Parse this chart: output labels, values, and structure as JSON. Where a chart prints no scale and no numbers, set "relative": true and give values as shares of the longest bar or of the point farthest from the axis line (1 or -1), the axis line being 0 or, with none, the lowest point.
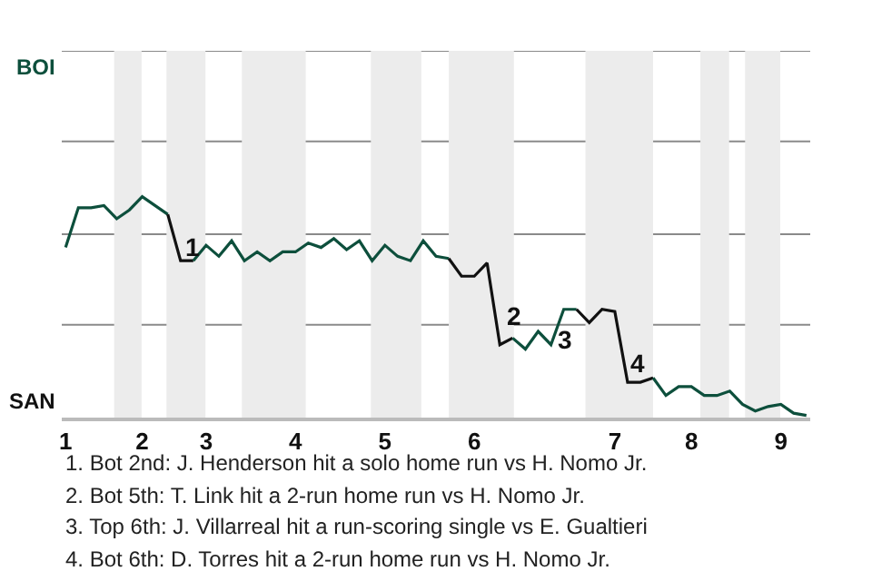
{
  "chart_data": {
    "type": "line",
    "relative": true,
    "marker": "none",
    "line_style": "solid",
    "ref_lines": [
      {
        "axis": "y",
        "value": 0.42,
        "color": "#8a8a8a"
      },
      {
        "axis": "y",
        "value": 0.83,
        "color": "#8a8a8a"
      },
      {
        "axis": "y",
        "value": 1.25,
        "color": "#8a8a8a"
      },
      {
        "axis": "y",
        "value": 1.66,
        "color": "#8a8a8a"
      }
    ],
    "categories": [
      "1",
      null,
      null,
      null,
      null,
      null,
      "2",
      null,
      null,
      null,
      null,
      "3",
      null,
      null,
      null,
      null,
      null,
      null,
      "4",
      null,
      null,
      null,
      null,
      null,
      null,
      "5",
      null,
      null,
      null,
      null,
      null,
      null,
      "6",
      null,
      null,
      null,
      null,
      null,
      null,
      null,
      null,
      null,
      null,
      "7",
      null,
      null,
      null,
      null,
      null,
      "8",
      null,
      null,
      null,
      null,
      null,
      null,
      "9",
      null,
      null
    ],
    "series": [
      {
        "color": "#0d4f3c",
        "values": [
          0.77,
          0.95,
          0.95,
          0.96,
          0.9,
          0.94,
          1.0,
          0.96,
          0.92,
          null,
          null,
          null,
          null,
          null,
          null,
          null,
          null,
          null,
          null,
          null,
          null,
          null,
          null,
          null,
          null,
          null,
          null,
          null,
          null,
          null,
          null,
          null,
          null,
          null,
          null,
          null,
          null,
          null,
          null,
          null,
          null,
          null,
          null,
          null,
          null,
          null,
          null,
          null,
          null,
          null,
          null,
          null,
          null,
          null,
          null,
          null,
          null,
          null,
          null
        ]
      },
      {
        "color": "#111111",
        "values": [
          null,
          null,
          null,
          null,
          null,
          null,
          null,
          null,
          0.92,
          0.71,
          0.71,
          null,
          null,
          null,
          null,
          null,
          null,
          null,
          null,
          null,
          null,
          null,
          null,
          null,
          null,
          null,
          null,
          null,
          null,
          null,
          null,
          null,
          null,
          null,
          null,
          null,
          null,
          null,
          null,
          null,
          null,
          null,
          null,
          null,
          null,
          null,
          null,
          null,
          null,
          null,
          null,
          null,
          null,
          null,
          null,
          null,
          null,
          null,
          null
        ]
      },
      {
        "color": "#0d4f3c",
        "values": [
          null,
          null,
          null,
          null,
          null,
          null,
          null,
          null,
          null,
          null,
          0.71,
          0.78,
          0.73,
          0.8,
          0.71,
          0.75,
          0.71,
          0.75,
          0.75,
          0.79,
          0.77,
          0.81,
          0.76,
          0.8,
          0.71,
          0.78,
          0.73,
          0.71,
          0.8,
          0.73,
          0.72,
          null,
          null,
          null,
          null,
          null,
          null,
          null,
          null,
          null,
          null,
          null,
          null,
          null,
          null,
          null,
          null,
          null,
          null,
          null,
          null,
          null,
          null,
          null,
          null,
          null,
          null,
          null,
          null
        ]
      },
      {
        "color": "#111111",
        "values": [
          null,
          null,
          null,
          null,
          null,
          null,
          null,
          null,
          null,
          null,
          null,
          null,
          null,
          null,
          null,
          null,
          null,
          null,
          null,
          null,
          null,
          null,
          null,
          null,
          null,
          null,
          null,
          null,
          null,
          null,
          0.72,
          0.64,
          0.64,
          0.7,
          0.33,
          0.36,
          null,
          null,
          null,
          null,
          null,
          null,
          null,
          null,
          null,
          null,
          null,
          null,
          null,
          null,
          null,
          null,
          null,
          null,
          null,
          null,
          null,
          null,
          null
        ]
      },
      {
        "color": "#0d4f3c",
        "values": [
          null,
          null,
          null,
          null,
          null,
          null,
          null,
          null,
          null,
          null,
          null,
          null,
          null,
          null,
          null,
          null,
          null,
          null,
          null,
          null,
          null,
          null,
          null,
          null,
          null,
          null,
          null,
          null,
          null,
          null,
          null,
          null,
          null,
          null,
          null,
          0.36,
          0.31,
          0.39,
          0.33,
          0.49,
          0.49,
          null,
          null,
          null,
          null,
          null,
          null,
          null,
          null,
          null,
          null,
          null,
          null,
          null,
          null,
          null,
          null,
          null,
          null
        ]
      },
      {
        "color": "#111111",
        "values": [
          null,
          null,
          null,
          null,
          null,
          null,
          null,
          null,
          null,
          null,
          null,
          null,
          null,
          null,
          null,
          null,
          null,
          null,
          null,
          null,
          null,
          null,
          null,
          null,
          null,
          null,
          null,
          null,
          null,
          null,
          null,
          null,
          null,
          null,
          null,
          null,
          null,
          null,
          null,
          null,
          0.49,
          0.43,
          0.49,
          0.48,
          0.16,
          0.16,
          0.18,
          null,
          null,
          null,
          null,
          null,
          null,
          null,
          null,
          null,
          null,
          null,
          null
        ]
      },
      {
        "color": "#0d4f3c",
        "values": [
          null,
          null,
          null,
          null,
          null,
          null,
          null,
          null,
          null,
          null,
          null,
          null,
          null,
          null,
          null,
          null,
          null,
          null,
          null,
          null,
          null,
          null,
          null,
          null,
          null,
          null,
          null,
          null,
          null,
          null,
          null,
          null,
          null,
          null,
          null,
          null,
          null,
          null,
          null,
          null,
          null,
          null,
          null,
          null,
          null,
          null,
          0.18,
          0.1,
          0.14,
          0.14,
          0.1,
          0.1,
          0.12,
          0.06,
          0.03,
          0.05,
          0.06,
          0.02,
          0.01
        ]
      }
    ],
    "annotations": [
      "BOI",
      "SAN",
      "1",
      "2",
      "3",
      "4",
      "1. Bot 2nd: J. Henderson hit a solo home run vs H. Nomo Jr.",
      "2. Bot 5th: T. Link hit a 2-run home run vs H. Nomo Jr.",
      "3. Top 6th: J. Villarreal hit a run-scoring single vs E. Gualtieri",
      "4. Bot 6th: D. Torres hit a 2-run home run vs H. Nomo Jr."
    ]
  }
}
